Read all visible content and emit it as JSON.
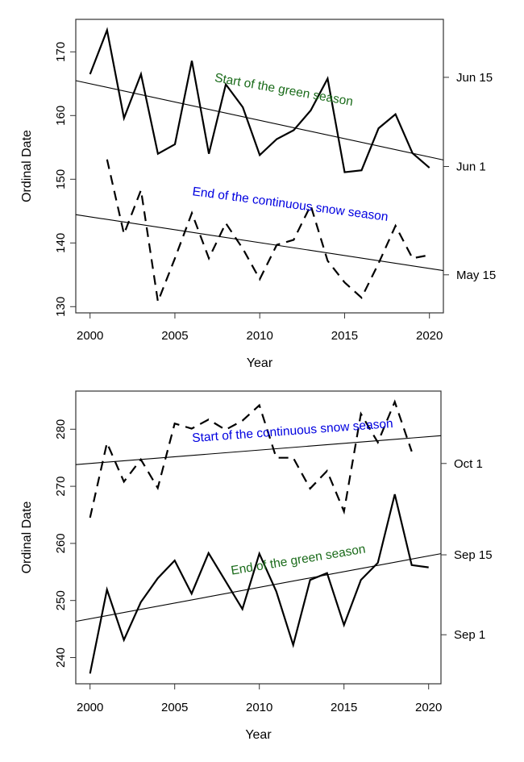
{
  "chart_data": [
    {
      "type": "line",
      "xlabel": "Year",
      "ylabel": "Ordinal Date",
      "xlim": [
        2000,
        2020
      ],
      "ylim": [
        130,
        170
      ],
      "x_ticks": [
        "2000",
        "2005",
        "2010",
        "2015",
        "2020"
      ],
      "y_ticks": [
        "130",
        "140",
        "150",
        "160",
        "170"
      ],
      "right_ticks": [
        {
          "label": "Jun 15",
          "value": 166
        },
        {
          "label": "Jun 1",
          "value": 152
        },
        {
          "label": "May 15",
          "value": 135
        }
      ],
      "series": [
        {
          "name": "Start of the green season",
          "style": "solid",
          "color": "#1a6b1a",
          "x": [
            2000,
            2001,
            2002,
            2003,
            2004,
            2005,
            2006,
            2007,
            2008,
            2009,
            2010,
            2011,
            2012,
            2013,
            2014,
            2015,
            2016,
            2017,
            2018,
            2019,
            2020
          ],
          "values": [
            166.5,
            173.4,
            159.6,
            166.5,
            154.0,
            155.5,
            168.6,
            154.0,
            164.9,
            161.3,
            153.8,
            156.3,
            157.7,
            160.8,
            165.8,
            151.1,
            151.4,
            158.0,
            160.2,
            154.1,
            151.8
          ],
          "trend": [
            165.0,
            153.5
          ]
        },
        {
          "name": "End of the continuous snow season",
          "style": "dashed",
          "color": "#0000e0",
          "x": [
            2001,
            2002,
            2003,
            2004,
            2005,
            2006,
            2007,
            2008,
            2009,
            2010,
            2011,
            2012,
            2013,
            2014,
            2015,
            2016,
            2017,
            2018,
            2019,
            2020
          ],
          "values": [
            153.1,
            141.4,
            148.3,
            130.8,
            137.6,
            144.7,
            137.6,
            143.1,
            139.1,
            134.3,
            139.7,
            140.5,
            145.9,
            137.2,
            133.8,
            131.4,
            136.8,
            142.7,
            137.6,
            138.1
          ],
          "trend": [
            144.1,
            136.0
          ]
        }
      ]
    },
    {
      "type": "line",
      "xlabel": "Year",
      "ylabel": "Ordinal Date",
      "xlim": [
        2000,
        2020
      ],
      "ylim": [
        240,
        280
      ],
      "x_ticks": [
        "2000",
        "2005",
        "2010",
        "2015",
        "2020"
      ],
      "y_ticks": [
        "240",
        "250",
        "260",
        "270",
        "280"
      ],
      "right_ticks": [
        {
          "label": "Oct 1",
          "value": 274
        },
        {
          "label": "Sep 15",
          "value": 258
        },
        {
          "label": "Sep 1",
          "value": 244
        }
      ],
      "series": [
        {
          "name": "Start of the continuous snow season",
          "style": "dashed",
          "color": "#0000e0",
          "x": [
            2000,
            2001,
            2002,
            2003,
            2004,
            2005,
            2006,
            2007,
            2008,
            2009,
            2010,
            2011,
            2012,
            2013,
            2014,
            2015,
            2016,
            2017,
            2018,
            2019
          ],
          "values": [
            264.5,
            277.6,
            270.8,
            274.7,
            269.7,
            281.0,
            280.1,
            281.7,
            279.9,
            281.5,
            284.2,
            275.0,
            275.0,
            269.6,
            272.7,
            265.6,
            282.7,
            277.7,
            284.8,
            276.1
          ],
          "trend": [
            274.0,
            278.7
          ]
        },
        {
          "name": "End of the green season",
          "style": "solid",
          "color": "#1a6b1a",
          "x": [
            2000,
            2001,
            2002,
            2003,
            2004,
            2005,
            2006,
            2007,
            2008,
            2009,
            2010,
            2011,
            2012,
            2013,
            2014,
            2015,
            2016,
            2017,
            2018,
            2019,
            2020
          ],
          "values": [
            237.2,
            251.9,
            243.1,
            249.7,
            253.9,
            257.0,
            251.2,
            258.3,
            253.4,
            248.5,
            258.2,
            251.6,
            242.2,
            253.6,
            254.8,
            245.7,
            253.6,
            256.6,
            268.6,
            256.2,
            255.8
          ],
          "trend": [
            246.8,
            257.8
          ]
        }
      ]
    }
  ]
}
